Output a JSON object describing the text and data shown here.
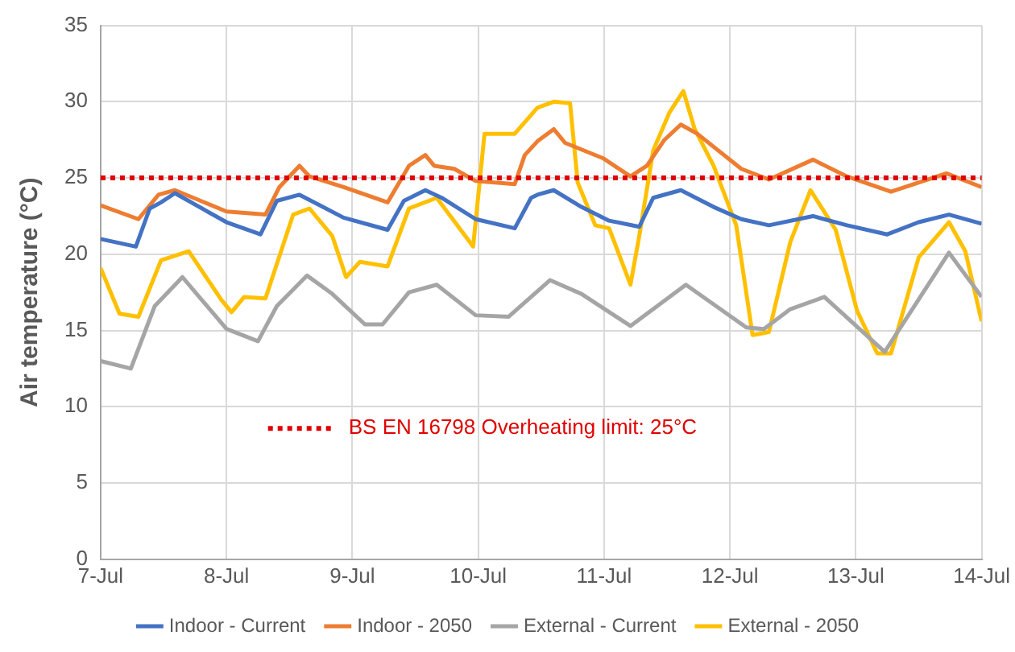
{
  "chart_data": {
    "type": "line",
    "ylabel": "Air temperature (°C)",
    "xlim": [
      "--07-07",
      "--07-14"
    ],
    "xticks": [
      {
        "value": "--07-07",
        "label": "7-Jul"
      },
      {
        "value": "--07-08",
        "label": "8-Jul"
      },
      {
        "value": "--07-09",
        "label": "9-Jul"
      },
      {
        "value": "--07-10",
        "label": "10-Jul"
      },
      {
        "value": "--07-11",
        "label": "11-Jul"
      },
      {
        "value": "--07-12",
        "label": "12-Jul"
      },
      {
        "value": "--07-13",
        "label": "13-Jul"
      },
      {
        "value": "--07-14",
        "label": "14-Jul"
      }
    ],
    "ylim": [
      0,
      35
    ],
    "yticks": [
      0,
      5,
      10,
      15,
      20,
      25,
      30,
      35
    ],
    "grid": true,
    "legend": "bottom",
    "marker": "none",
    "line_style": "solid",
    "ref_lines": [
      {
        "axis": "y",
        "value": 25,
        "label": "BS EN 16798 Overheating limit: 25°C",
        "color": "#e00000",
        "line_style": "dotted"
      }
    ],
    "series": [
      {
        "name": "Indoor - Current",
        "color": "#4472c4",
        "x": [
          "--07-07T00:00",
          "--07-07T06:43",
          "--07-07T09:22",
          "--07-07T11:31",
          "--07-07T14:10",
          "--07-08T00:00",
          "--07-08T06:29",
          "--07-08T09:36",
          "--07-08T13:55",
          "--07-08T22:19",
          "--07-09T06:43",
          "--07-09T09:50",
          "--07-09T13:55",
          "--07-09T17:02",
          "--07-09T23:31",
          "--07-10T06:58",
          "--07-10T10:05",
          "--07-10T11:17",
          "--07-10T14:24",
          "--07-10T19:41",
          "--07-11T00:58",
          "--07-11T06:43",
          "--07-11T09:22",
          "--07-11T14:38",
          "--07-11T20:53",
          "--07-12T02:10",
          "--07-12T07:26",
          "--07-12T15:50",
          "--07-12T22:19",
          "--07-13T06:00",
          "--07-13T12:00",
          "--07-13T17:46",
          "--07-14T00:00"
        ],
        "values": [
          21.0,
          20.5,
          23.0,
          23.4,
          24.0,
          22.1,
          21.3,
          23.5,
          23.9,
          22.4,
          21.6,
          23.5,
          24.2,
          23.7,
          22.3,
          21.7,
          23.7,
          23.9,
          24.2,
          23.1,
          22.2,
          21.8,
          23.7,
          24.2,
          23.1,
          22.3,
          21.9,
          22.5,
          21.9,
          21.3,
          22.1,
          22.6,
          22.0
        ]
      },
      {
        "name": "Indoor - 2050",
        "color": "#ed7d31",
        "x": [
          "--07-07T00:00",
          "--07-07T07:12",
          "--07-07T11:02",
          "--07-07T14:10",
          "--07-08T00:00",
          "--07-08T07:26",
          "--07-08T10:05",
          "--07-08T13:55",
          "--07-08T15:50",
          "--07-08T22:19",
          "--07-09T06:43",
          "--07-09T10:48",
          "--07-09T13:55",
          "--07-09T15:36",
          "--07-09T19:26",
          "--07-09T23:31",
          "--07-10T06:58",
          "--07-10T08:53",
          "--07-10T11:17",
          "--07-10T14:24",
          "--07-10T16:34",
          "--07-10T23:46",
          "--07-11T05:02",
          "--07-11T08:10",
          "--07-11T11:31",
          "--07-11T14:38",
          "--07-11T17:46",
          "--07-12T02:10",
          "--07-12T07:26",
          "--07-12T15:50",
          "--07-12T22:19",
          "--07-13T06:43",
          "--07-13T17:17",
          "--07-14T00:00"
        ],
        "values": [
          23.2,
          22.3,
          23.9,
          24.2,
          22.8,
          22.6,
          24.4,
          25.8,
          25.1,
          24.4,
          23.4,
          25.8,
          26.5,
          25.8,
          25.6,
          24.8,
          24.6,
          26.5,
          27.4,
          28.2,
          27.3,
          26.3,
          25.1,
          25.8,
          27.5,
          28.5,
          27.9,
          25.6,
          24.9,
          26.2,
          25.1,
          24.1,
          25.3,
          24.4
        ]
      },
      {
        "name": "External - Current",
        "color": "#a5a5a5",
        "x": [
          "--07-07T00:00",
          "--07-07T05:46",
          "--07-07T10:19",
          "--07-07T15:36",
          "--07-08T00:00",
          "--07-08T06:00",
          "--07-08T09:36",
          "--07-08T15:22",
          "--07-08T20:10",
          "--07-09T02:24",
          "--07-09T05:46",
          "--07-09T10:48",
          "--07-09T16:05",
          "--07-09T23:31",
          "--07-10T05:46",
          "--07-10T13:41",
          "--07-10T19:41",
          "--07-11T05:02",
          "--07-11T15:36",
          "--07-12T03:07",
          "--07-12T06:29",
          "--07-12T11:31",
          "--07-12T18:00",
          "--07-13T05:31",
          "--07-13T17:46",
          "--07-14T00:00"
        ],
        "values": [
          13.0,
          12.5,
          16.6,
          18.5,
          15.1,
          14.3,
          16.6,
          18.6,
          17.4,
          15.4,
          15.4,
          17.5,
          18.0,
          16.0,
          15.9,
          18.3,
          17.4,
          15.3,
          18.0,
          15.2,
          15.1,
          16.4,
          17.2,
          13.6,
          20.1,
          17.2
        ]
      },
      {
        "name": "External - 2050",
        "color": "#ffc000",
        "x": [
          "--07-07T00:00",
          "--07-07T03:36",
          "--07-07T07:12",
          "--07-07T11:31",
          "--07-07T16:48",
          "--07-07T23:02",
          "--07-08T00:58",
          "--07-08T03:22",
          "--07-08T07:26",
          "--07-08T12:43",
          "--07-08T15:50",
          "--07-08T20:10",
          "--07-08T22:48",
          "--07-09T01:26",
          "--07-09T06:43",
          "--07-09T10:48",
          "--07-09T16:05",
          "--07-09T23:02",
          "--07-10T01:12",
          "--07-10T06:58",
          "--07-10T11:17",
          "--07-10T14:24",
          "--07-10T17:31",
          "--07-10T18:58",
          "--07-10T22:19",
          "--07-11T00:58",
          "--07-11T05:02",
          "--07-11T06:43",
          "--07-11T09:22",
          "--07-11T12:29",
          "--07-11T15:07",
          "--07-11T17:17",
          "--07-11T20:53",
          "--07-12T01:12",
          "--07-12T04:19",
          "--07-12T07:26",
          "--07-12T11:31",
          "--07-12T15:22",
          "--07-12T20:10",
          "--07-13T00:14",
          "--07-13T04:05",
          "--07-13T06:43",
          "--07-13T12:00",
          "--07-13T17:46",
          "--07-13T20:53",
          "--07-14T00:00"
        ],
        "values": [
          19.1,
          16.1,
          15.9,
          19.6,
          20.2,
          17.0,
          16.2,
          17.2,
          17.1,
          22.6,
          23.0,
          21.2,
          18.5,
          19.5,
          19.2,
          23.0,
          23.7,
          20.5,
          27.9,
          27.9,
          29.6,
          30.0,
          29.9,
          24.7,
          21.9,
          21.7,
          18.0,
          21.2,
          26.8,
          29.3,
          30.7,
          28.2,
          25.8,
          21.9,
          14.7,
          14.9,
          20.8,
          24.2,
          21.6,
          16.3,
          13.5,
          13.5,
          19.8,
          22.1,
          20.2,
          15.6
        ]
      }
    ]
  }
}
